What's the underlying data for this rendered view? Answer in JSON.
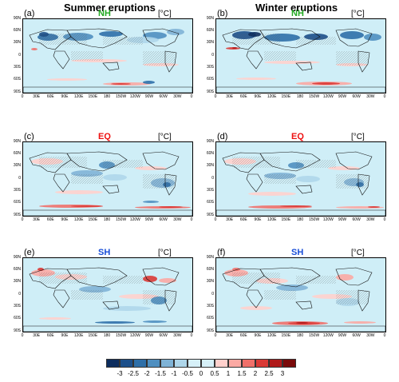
{
  "column_titles": [
    "Summer eruptions",
    "Winter eruptions"
  ],
  "unit": "[°C]",
  "panels": [
    {
      "letter": "(a)",
      "region": "NH",
      "region_color": "#22aa22",
      "pattern": "nh_summer"
    },
    {
      "letter": "(b)",
      "region": "NH",
      "region_color": "#22aa22",
      "pattern": "nh_winter"
    },
    {
      "letter": "(c)",
      "region": "EQ",
      "region_color": "#ee1111",
      "pattern": "eq_summer"
    },
    {
      "letter": "(d)",
      "region": "EQ",
      "region_color": "#ee1111",
      "pattern": "eq_winter"
    },
    {
      "letter": "(e)",
      "region": "SH",
      "region_color": "#1a4fd8",
      "pattern": "sh_summer"
    },
    {
      "letter": "(f)",
      "region": "SH",
      "region_color": "#1a4fd8",
      "pattern": "sh_winter"
    }
  ],
  "lat_labels": [
    "90N",
    "60N",
    "30N",
    "0",
    "30S",
    "60S",
    "90S"
  ],
  "lon_labels": [
    "0",
    "30E",
    "60E",
    "90E",
    "120E",
    "150E",
    "180",
    "150W",
    "120W",
    "90W",
    "60W",
    "30W",
    "0"
  ],
  "colorbar": {
    "labels": [
      "-3",
      "-2.5",
      "-2",
      "-1.5",
      "-1",
      "-0.5",
      "0",
      "0.5",
      "1",
      "1.5",
      "2",
      "2.5",
      "3"
    ],
    "colors": [
      "#0c2d5e",
      "#1c4f8a",
      "#2e6fa8",
      "#4f8fc0",
      "#7fb3d6",
      "#aed6ea",
      "#d6f0f8",
      "#d6f0f8",
      "#ffd0cc",
      "#fba9a3",
      "#f0706a",
      "#d93a36",
      "#b01a1a",
      "#7a0a0a"
    ]
  }
}
